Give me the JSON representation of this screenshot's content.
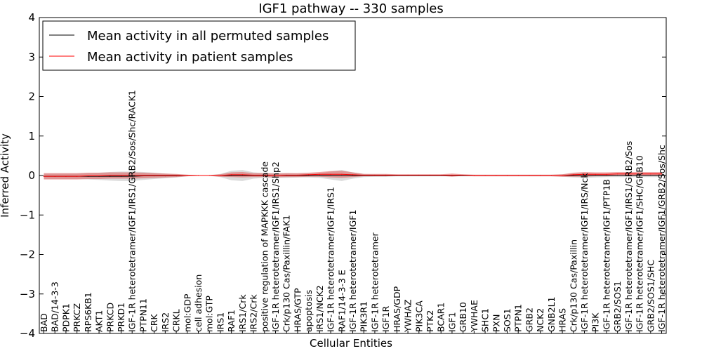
{
  "chart_data": {
    "type": "line",
    "title": "IGF1 pathway -- 330 samples",
    "xlabel": "Cellular Entities",
    "ylabel": "Inferred Activity",
    "ylim": [
      -4,
      4
    ],
    "yticks": [
      -4,
      -3,
      -2,
      -1,
      0,
      1,
      2,
      3,
      4
    ],
    "ytick_labels": [
      "−4",
      "−3",
      "−2",
      "−1",
      "0",
      "1",
      "2",
      "3",
      "4"
    ],
    "legend_position": "top-left",
    "categories": [
      "BAD",
      "BAD/14-3-3",
      "PDPK1",
      "PRKCZ",
      "RPS6KB1",
      "AKT1",
      "PRKCD",
      "PRKD1",
      "IGF-1R heterotetramer/IGF1/IRS1/GRB2/Sos/Shc/RACK1",
      "PTPN11",
      "CRK",
      "IRS2",
      "CRKL",
      "mol:GDP",
      "cell adhesion",
      "mol:GTP",
      "IRS1",
      "RAF1",
      "IRS1/Crk",
      "IRS2/Crk",
      "positive regulation of MAPKKK cascade",
      "IGF-1R heterotetramer/IGF1/IRS1/Shp2",
      "Crk/p130 Cas/Paxillin/FAK1",
      "HRAS/GTP",
      "apoptosis",
      "IRS1/NCK2",
      "IGF-1R heterotetramer/IGF1/IRS1",
      "RAF1/14-3-3 E",
      "IGF-1R heterotetramer/IGF1",
      "PIK3R1",
      "IGF-1R heterotetramer",
      "IGF1R",
      "HRAS/GDP",
      "YWHAZ",
      "PIK3CA",
      "PTK2",
      "BCAR1",
      "IGF1",
      "GRB10",
      "YWHAE",
      "SHC1",
      "PXN",
      "SOS1",
      "PTPN1",
      "GRB2",
      "NCK2",
      "GNB2L1",
      "HRAS",
      "Crk/p130 Cas/Paxillin",
      "IGF-1R heterotetramer/IGF1/IRS/Nck",
      "PI3K",
      "IGF-1R heterotetramer/IGF1/PTP1B",
      "GRB2/SOS1",
      "IGF-1R heterotetramer/IGF1/IRS1/GRB2/Sos",
      "IGF-1R heterotetramer/IGF1/SHC/GRB10",
      "GRB2/SOS1/SHC",
      "IGF-1R heterotetramer/IGF1/GRB2/Sos/Shc"
    ],
    "series": [
      {
        "name": "Mean activity in all permuted samples",
        "color": "#000000",
        "values": [
          -0.02,
          -0.02,
          -0.02,
          -0.02,
          -0.02,
          -0.02,
          -0.02,
          -0.02,
          -0.02,
          -0.01,
          -0.01,
          -0.01,
          -0.01,
          0,
          0,
          0,
          0,
          0,
          0,
          0,
          0,
          0,
          0,
          0,
          0,
          0,
          0,
          0,
          0,
          0,
          0,
          0,
          0,
          0,
          0,
          0,
          0,
          0,
          0,
          0,
          0,
          0,
          0,
          0,
          0,
          0,
          0,
          0,
          0,
          0,
          0,
          0,
          0,
          0,
          0,
          0,
          0
        ],
        "spread": [
          0.07,
          0.07,
          0.07,
          0.07,
          0.08,
          0.09,
          0.11,
          0.12,
          0.12,
          0.1,
          0.08,
          0.06,
          0.04,
          0.02,
          0.01,
          0.01,
          0.04,
          0.12,
          0.14,
          0.08,
          0.06,
          0.06,
          0.06,
          0.05,
          0.05,
          0.06,
          0.1,
          0.14,
          0.08,
          0.04,
          0.03,
          0.03,
          0.02,
          0.02,
          0.02,
          0.02,
          0.02,
          0.02,
          0.02,
          0.02,
          0.02,
          0.02,
          0.02,
          0.02,
          0.02,
          0.02,
          0.02,
          0.03,
          0.05,
          0.06,
          0.05,
          0.04,
          0.04,
          0.04,
          0.04,
          0.04,
          0.04
        ]
      },
      {
        "name": "Mean activity in patient samples",
        "color": "#ff0000",
        "values": [
          -0.02,
          -0.02,
          -0.02,
          -0.02,
          -0.01,
          -0.01,
          0,
          0,
          0,
          0,
          0,
          0,
          0,
          0,
          0,
          0,
          0,
          0.02,
          0.02,
          0.01,
          0.01,
          0,
          0.01,
          0.01,
          0.02,
          0.03,
          0.03,
          0.03,
          0.02,
          0.01,
          0.01,
          0.01,
          0.01,
          0.01,
          0.01,
          0.01,
          0.01,
          0.01,
          0.01,
          0,
          0,
          0,
          0,
          0,
          0,
          0,
          0,
          0,
          0.02,
          0.03,
          0.03,
          0.03,
          0.04,
          0.04,
          0.04,
          0.04,
          0.04
        ],
        "spread": [
          0.08,
          0.08,
          0.08,
          0.08,
          0.08,
          0.08,
          0.08,
          0.08,
          0.08,
          0.07,
          0.06,
          0.05,
          0.04,
          0.02,
          0.01,
          0.01,
          0.03,
          0.06,
          0.07,
          0.05,
          0.05,
          0.05,
          0.05,
          0.05,
          0.05,
          0.06,
          0.08,
          0.09,
          0.06,
          0.03,
          0.03,
          0.03,
          0.02,
          0.02,
          0.02,
          0.02,
          0.02,
          0.04,
          0.02,
          0.02,
          0.02,
          0.02,
          0.02,
          0.02,
          0.02,
          0.02,
          0.02,
          0.03,
          0.05,
          0.06,
          0.05,
          0.05,
          0.05,
          0.05,
          0.05,
          0.05,
          0.05
        ]
      }
    ]
  }
}
